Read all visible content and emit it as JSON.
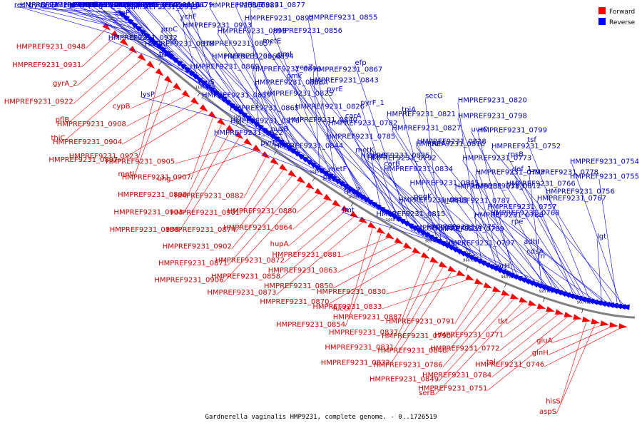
{
  "caption": "Gardnerella vaginalis HMP9231, complete genome. - 0..1726519",
  "legend": {
    "forward_label": "Forward",
    "reverse_label": "Reverse",
    "forward_color": "#ff0000",
    "reverse_color": "#0000ff"
  },
  "scale_ticks": [
    "1120 kbp",
    "1100 kbp",
    "1080 kbp",
    "1060 kbp",
    "1040 kbp",
    "1020 kbp",
    "1000 kbp",
    "980 kbp",
    "960 kbp",
    "940 kbp",
    "920 kbp",
    "900 kbp"
  ],
  "forward_genes": [
    "HMPREF9231_0948",
    "HMPREF9231_0931",
    "gyrA_2",
    "HMPREF9231_0922",
    "pflB",
    "thiC",
    "HMPREF9231_0923",
    "metI",
    "cypB",
    "HMPREF9231_0908",
    "HMPREF9231_0904",
    "HMPREF9231_0897",
    "HMPREF9231_0907",
    "HMPREF9231_0890",
    "HMPREF9231_0903",
    "HMPREF9231_0888",
    "HMPREF9231_0905",
    "ung",
    "HMPREF9231_0882",
    "HMPREF9231_0901",
    "HMPREF9231_0874",
    "HMPREF9231_0902",
    "HMPREF9231_0871",
    "HMPREF9231_0906",
    "HMPREF9231_0880",
    "HMPREF9231_0864",
    "hupA",
    "HMPREF9231_0872",
    "HMPREF9231_0858",
    "HMPREF9231_0873",
    "fucO",
    "HMPREF9231_0854",
    "HMPREF9231_0881",
    "HMPREF9231_0863",
    "HMPREF9231_0850",
    "HMPREF9231_0870",
    "HMPREF9231_0887",
    "HMPREF9231_0837",
    "HMPREF9231_0831",
    "HMPREF9231_0832",
    "HMPREF9231_0830",
    "HMPREF9231_0833",
    "HMPREF9231_0791",
    "HMPREF9231_0790",
    "HMPREF9231_0848",
    "HMPREF9231_0786",
    "HMPREF9231_0849",
    "serB",
    "tkt",
    "HMPREF9231_0771",
    "HMPREF9231_0772",
    "tal",
    "HMPREF9231_0784",
    "HMPREF9231_0751",
    "hisS",
    "aspS",
    "gluA",
    "glnH",
    "HMPREF9231_0746"
  ],
  "reverse_genes": [
    "recN",
    "secA",
    "raiA",
    "rpoD",
    "HMPREF9231_0942",
    "HMPREF9231_0938",
    "gyrB_2",
    "HMPREF9231_0934",
    "dut",
    "HMPREF9231_0935",
    "HMPREF9231_0930",
    "HMPREF9231_0914",
    "HMPREF9231_0916",
    "HMPREF9231_0917",
    "relA",
    "pflA",
    "nadE",
    "tig",
    "HMPREF9231_0932",
    "HMPREF9231_0913",
    "clpP",
    "HMPREF9231_0921",
    "phoP_2",
    "clpC",
    "groL",
    "HMPREF9231_0899",
    "HMPREF9231_0879",
    "HMPREF9231_0869",
    "thrS",
    "pip",
    "proC",
    "ychF",
    "pth",
    "mfd",
    "ilvE",
    "eno",
    "lysP",
    "leuS",
    "HMPREF9231_0896",
    "HMPREF9231_0894",
    "HMPREF9231_0878",
    "HMPREF9231_0893",
    "HMPREF9231_0892",
    "HMPREF9231_0889",
    "HMPREF9231_0877",
    "HMPREF9231_0876",
    "HMPREF9231_0865",
    "HMPREF9231_0859",
    "HMPREF9231_0853",
    "HMPREF9231_0867",
    "HMPREF9231_0866",
    "HMPREF9231_0857",
    "HMPREF9231_0856",
    "HMPREF9231_0855",
    "HMPREF9231_0844",
    "HMPREF9231_0822",
    "HMPREF9231_0840",
    "HMPREF9231_0826",
    "HMPREF9231_0825",
    "HMPREF9231_0843",
    "yeaZ",
    "rimI",
    "metE",
    "metF",
    "pyrB",
    "pyrF_2",
    "nusB",
    "carA",
    "pyrF_1",
    "pyrE",
    "gmk",
    "efp",
    "rpoZ",
    "pgk",
    "carB",
    "metK",
    "HMPREF9231_0785",
    "HMPREF9231_0782",
    "tpiA",
    "secG",
    "hrcA",
    "fmt",
    "ppgK",
    "HMPREF9231_0845",
    "HMPREF9231_0834",
    "HMPREF9231_0835",
    "HMPREF9231_0828",
    "HMPREF9231_0827",
    "HMPREF9231_0821",
    "HMPREF9231_0820",
    "HMPREF9231_0817",
    "HMPREF9231_0815",
    "HMPREF9231_0813",
    "HMPREF9231_0812",
    "HMPREF9231_0793",
    "HMPREF9231_0792",
    "HMPREF9231_0810",
    "HMPREF9231_0799",
    "HMPREF9231_0798",
    "HMPREF9231_0797",
    "HMPREF9231_0789",
    "HMPREF9231_0788",
    "HMPREF9231_0787",
    "HMPREF9231_0783",
    "HMPREF9231_0778",
    "HMPREF9231_0773",
    "uvrA",
    "uvrC",
    "frr",
    "adhI",
    "HMPREF9231_0775",
    "HMPREF9231_0768",
    "HMPREF9231_0767",
    "HMPREF9231_0766",
    "def_1",
    "rpsB",
    "tsf",
    "pyrH",
    "cdsA",
    "lgt",
    "rpe",
    "HMPREF9231_0757",
    "HMPREF9231_0756",
    "HMPREF9231_0755",
    "HMPREF9231_0754",
    "HMPREF9231_0752"
  ]
}
